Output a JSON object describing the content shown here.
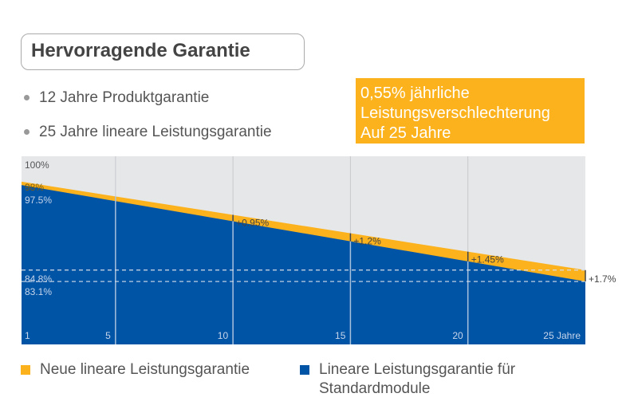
{
  "title": "Hervorragende Garantie",
  "bullets": [
    "12 Jahre Produktgarantie",
    "25 Jahre lineare Leistungsgarantie"
  ],
  "note": [
    "0,55% jährliche",
    "Leistungsverschlechterung",
    "Auf 25 Jahre"
  ],
  "colors": {
    "yellow": "#fbb21c",
    "blue": "#0054a6",
    "bg": "#e6e7e9"
  },
  "chart_data": {
    "type": "area",
    "x_ticks": [
      {
        "x": 1,
        "label": "1"
      },
      {
        "x": 5,
        "label": "5"
      },
      {
        "x": 10,
        "label": "10"
      },
      {
        "x": 15,
        "label": "15"
      },
      {
        "x": 20,
        "label": "20"
      },
      {
        "x": 25,
        "label": "25 Jahre"
      }
    ],
    "xlim": [
      1,
      25
    ],
    "ylim": [
      73.7,
      101.8
    ],
    "top_label": "100%",
    "series": [
      {
        "name": "Neue lineare Leistungsgarantie",
        "color": "#fbb21c",
        "x": [
          1,
          25
        ],
        "y": [
          98,
          84.8
        ]
      },
      {
        "name": "Lineare Leistungsgarantie für Standardmodule",
        "color": "#0054a6",
        "x": [
          1,
          25
        ],
        "y": [
          97.5,
          83.1
        ]
      }
    ],
    "y_labels": [
      {
        "y": 98,
        "label": "98%"
      },
      {
        "y": 97.5,
        "label": "97.5%"
      },
      {
        "y": 84.8,
        "label": "84.8%"
      },
      {
        "y": 83.1,
        "label": "83.1%"
      }
    ],
    "reference_lines": [
      84.8,
      83.1
    ],
    "gap_annotations": [
      {
        "x": 10,
        "label": "+0.95%"
      },
      {
        "x": 15,
        "label": "+1.2%"
      },
      {
        "x": 20,
        "label": "+1.45%"
      },
      {
        "x": 25,
        "label": "+1.7%"
      }
    ]
  },
  "legend": [
    "Neue lineare Leistungsgarantie",
    "Lineare Leistungsgarantie für Standardmodule"
  ]
}
